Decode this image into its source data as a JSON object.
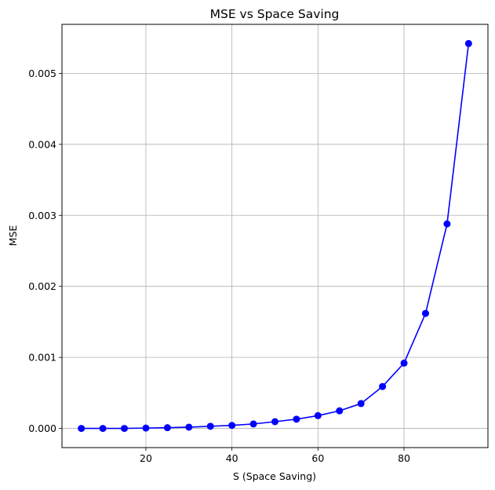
{
  "chart_data": {
    "type": "line",
    "title": "MSE vs Space Saving",
    "xlabel": "S (Space Saving)",
    "ylabel": "MSE",
    "x_ticks": [
      20,
      40,
      60,
      80
    ],
    "y_ticks": [
      "0.000",
      "0.001",
      "0.002",
      "0.003",
      "0.004",
      "0.005"
    ],
    "xlim": [
      0.5,
      99.5
    ],
    "ylim": [
      -0.00027,
      0.00569
    ],
    "grid": true,
    "series": [
      {
        "color": "#0000ff",
        "marker": "circle",
        "x": [
          5,
          10,
          15,
          20,
          25,
          30,
          35,
          40,
          45,
          50,
          55,
          60,
          65,
          70,
          75,
          80,
          85,
          90,
          95
        ],
        "y": [
          0.0,
          0.0,
          0.0,
          5e-06,
          1e-05,
          1.8e-05,
          3e-05,
          4.3e-05,
          6.3e-05,
          9.5e-05,
          0.00013,
          0.00018,
          0.000248,
          0.00035,
          0.00059,
          0.00092,
          0.00162,
          0.00288,
          0.00542
        ]
      }
    ]
  }
}
